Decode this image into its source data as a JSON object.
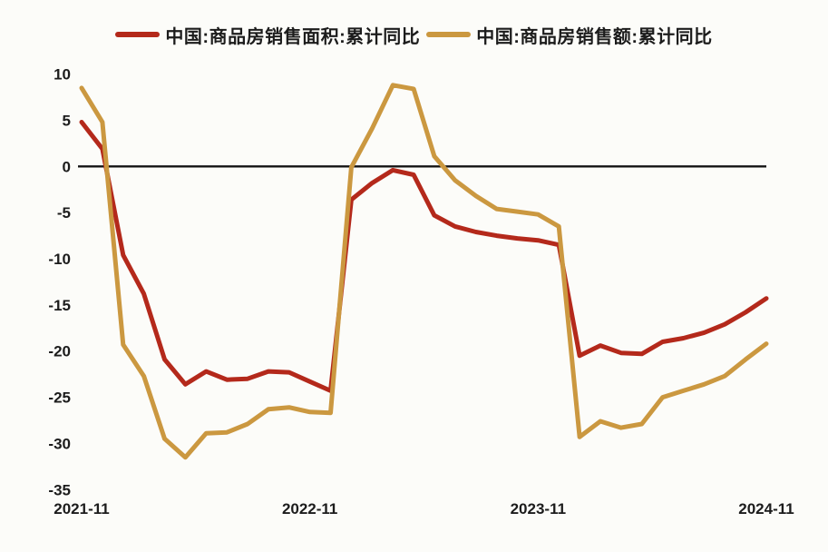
{
  "legend": {
    "items": [
      {
        "label": "中国:商品房销售面积:累计同比",
        "color": "#b4291b"
      },
      {
        "label": "中国:商品房销售额:累计同比",
        "color": "#cb9840"
      }
    ]
  },
  "chart_data": {
    "type": "line",
    "title": "",
    "xlabel": "",
    "ylabel": "",
    "x": [
      "2021-11",
      "2021-12",
      "2022-02",
      "2022-03",
      "2022-04",
      "2022-05",
      "2022-06",
      "2022-07",
      "2022-08",
      "2022-09",
      "2022-10",
      "2022-11",
      "2022-12",
      "2023-02",
      "2023-03",
      "2023-04",
      "2023-05",
      "2023-06",
      "2023-07",
      "2023-08",
      "2023-09",
      "2023-10",
      "2023-11",
      "2023-12",
      "2024-02",
      "2024-03",
      "2024-04",
      "2024-05",
      "2024-06",
      "2024-07",
      "2024-08",
      "2024-09",
      "2024-10",
      "2024-11"
    ],
    "series": [
      {
        "name": "中国:商品房销售面积:累计同比",
        "color": "#b4291b",
        "values": [
          4.8,
          1.9,
          -9.6,
          -13.8,
          -20.9,
          -23.6,
          -22.2,
          -23.1,
          -23.0,
          -22.2,
          -22.3,
          -23.3,
          -24.3,
          -3.6,
          -1.8,
          -0.4,
          -0.9,
          -5.3,
          -6.5,
          -7.1,
          -7.5,
          -7.8,
          -8.0,
          -8.5,
          -20.5,
          -19.4,
          -20.2,
          -20.3,
          -19.0,
          -18.6,
          -18.0,
          -17.1,
          -15.8,
          -14.3
        ]
      },
      {
        "name": "中国:商品房销售额:累计同比",
        "color": "#cb9840",
        "values": [
          8.5,
          4.8,
          -19.3,
          -22.7,
          -29.5,
          -31.5,
          -28.9,
          -28.8,
          -27.9,
          -26.3,
          -26.1,
          -26.6,
          -26.7,
          -0.1,
          4.1,
          8.8,
          8.4,
          1.1,
          -1.5,
          -3.2,
          -4.6,
          -4.9,
          -5.2,
          -6.5,
          -29.3,
          -27.6,
          -28.3,
          -27.9,
          -25.0,
          -24.3,
          -23.6,
          -22.7,
          -20.9,
          -19.2
        ]
      }
    ],
    "ylim": [
      -35,
      10
    ],
    "y_ticks": [
      10,
      5,
      0,
      -5,
      -10,
      -15,
      -20,
      -25,
      -30,
      -35
    ],
    "x_ticks": [
      {
        "index": 0,
        "label": "2021-11"
      },
      {
        "index": 11,
        "label": "2022-11"
      },
      {
        "index": 22,
        "label": "2023-11"
      },
      {
        "index": 33,
        "label": "2024-11"
      }
    ],
    "grid": false,
    "legend_position": "top",
    "zero_line": true,
    "axis_color": "#141414"
  }
}
